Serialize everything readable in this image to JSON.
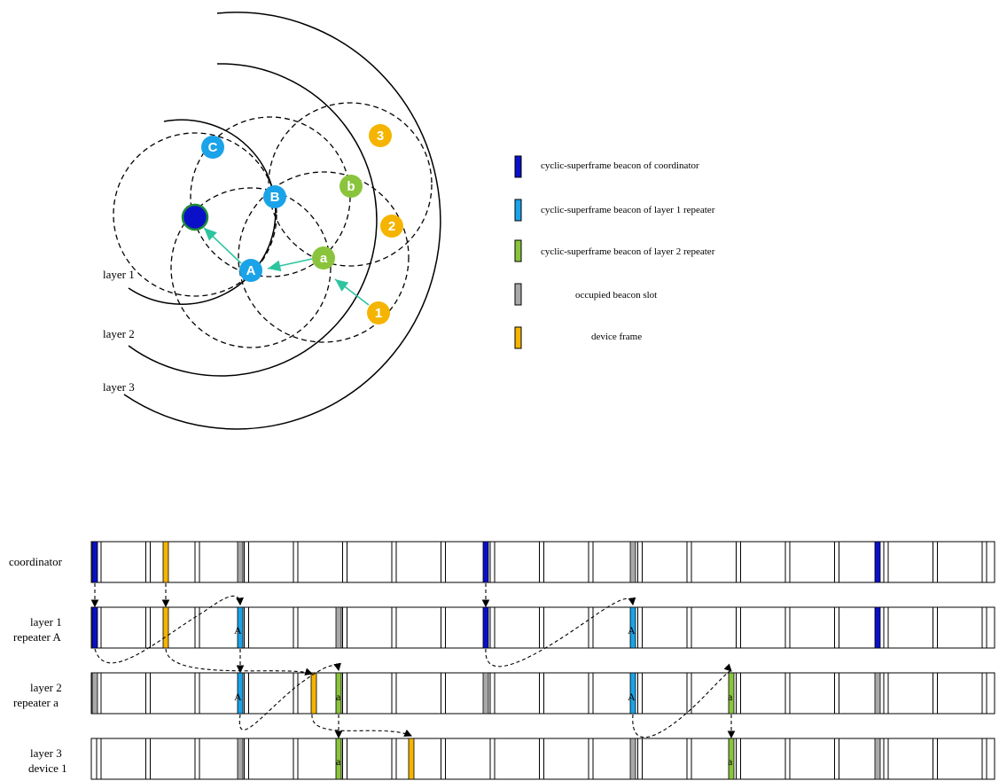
{
  "colors": {
    "coordinator_beacon": "#0a10c8",
    "layer1_beacon": "#1aa3e8",
    "layer2_beacon": "#8ac43c",
    "occupied": "#a8a8a8",
    "device": "#f5b400",
    "arrow": "#2ec4a0"
  },
  "legend": [
    {
      "label": "cyclic-superframe beacon of coordinator",
      "color": "#0a10c8"
    },
    {
      "label": "cyclic-superframe beacon of layer 1 repeater",
      "color": "#1aa3e8"
    },
    {
      "label": "cyclic-superframe beacon of layer 2 repeater",
      "color": "#8ac43c"
    },
    {
      "label": "occupied beacon slot",
      "color": "#a8a8a8"
    },
    {
      "label": "device frame",
      "color": "#f5b400"
    }
  ],
  "layers": [
    "layer 1",
    "layer 2",
    "layer 3"
  ],
  "nodes": [
    {
      "id": "coord",
      "label": "",
      "color": "#0a10c8"
    },
    {
      "id": "C",
      "label": "C",
      "color": "#1aa3e8"
    },
    {
      "id": "B",
      "label": "B",
      "color": "#1aa3e8"
    },
    {
      "id": "A",
      "label": "A",
      "color": "#1aa3e8"
    },
    {
      "id": "b",
      "label": "b",
      "color": "#8ac43c"
    },
    {
      "id": "a",
      "label": "a",
      "color": "#8ac43c"
    },
    {
      "id": "3",
      "label": "3",
      "color": "#f5b400"
    },
    {
      "id": "2",
      "label": "2",
      "color": "#f5b400"
    },
    {
      "id": "1",
      "label": "1",
      "color": "#f5b400"
    }
  ],
  "timeline": {
    "rows": [
      {
        "label": [
          "coordinator"
        ]
      },
      {
        "label": [
          "layer 1",
          "repeater A"
        ]
      },
      {
        "label": [
          "layer 2",
          "repeater a"
        ]
      },
      {
        "label": [
          "layer 3",
          "device 1"
        ]
      }
    ],
    "slot_labels": {
      "layer1_A": "A",
      "layer2_A": "A",
      "layer2_a": "a",
      "layer3_a": "a"
    }
  }
}
